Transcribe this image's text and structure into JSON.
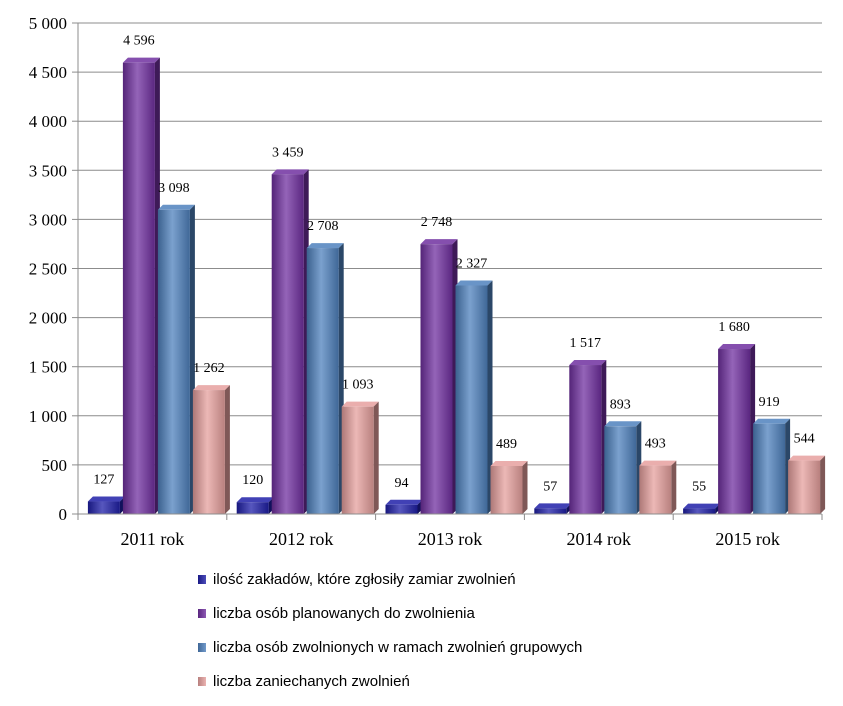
{
  "chart_data": {
    "type": "bar",
    "categories": [
      "2011 rok",
      "2012 rok",
      "2013 rok",
      "2014 rok",
      "2015 rok"
    ],
    "series": [
      {
        "name": "ilość zakładów, które zgłosiły zamiar zwolnień",
        "values": [
          127,
          120,
          94,
          57,
          55
        ],
        "labels": [
          "127",
          "120",
          "94",
          "57",
          "55"
        ],
        "color": "#1f1fa8"
      },
      {
        "name": "liczba osób planowanych do zwolnienia",
        "values": [
          4596,
          3459,
          2748,
          1517,
          1680
        ],
        "labels": [
          "4 596",
          "3 459",
          "2 748",
          "1 517",
          "1 680"
        ],
        "color": "#7030a0"
      },
      {
        "name": "liczba osób zwolnionych w ramach zwolnień grupowych",
        "values": [
          3098,
          2708,
          2327,
          893,
          919
        ],
        "labels": [
          "3 098",
          "2 708",
          "2 327",
          "893",
          "919"
        ],
        "color": "#4f81bd"
      },
      {
        "name": "liczba zaniechanych zwolnień",
        "values": [
          1262,
          1093,
          489,
          493,
          544
        ],
        "labels": [
          "1 262",
          "1 093",
          "489",
          "493",
          "544"
        ],
        "color": "#e6a09e"
      }
    ],
    "ylim": [
      0,
      5000
    ],
    "yticks": [
      0,
      500,
      1000,
      1500,
      2000,
      2500,
      3000,
      3500,
      4000,
      4500,
      5000
    ],
    "ytick_labels": [
      "0",
      "500",
      "1 000",
      "1 500",
      "2 000",
      "2 500",
      "3 000",
      "3 500",
      "4 000",
      "4 500",
      "5 000"
    ],
    "grid": true,
    "legend_position": "bottom",
    "title": "",
    "xlabel": "",
    "ylabel": ""
  }
}
